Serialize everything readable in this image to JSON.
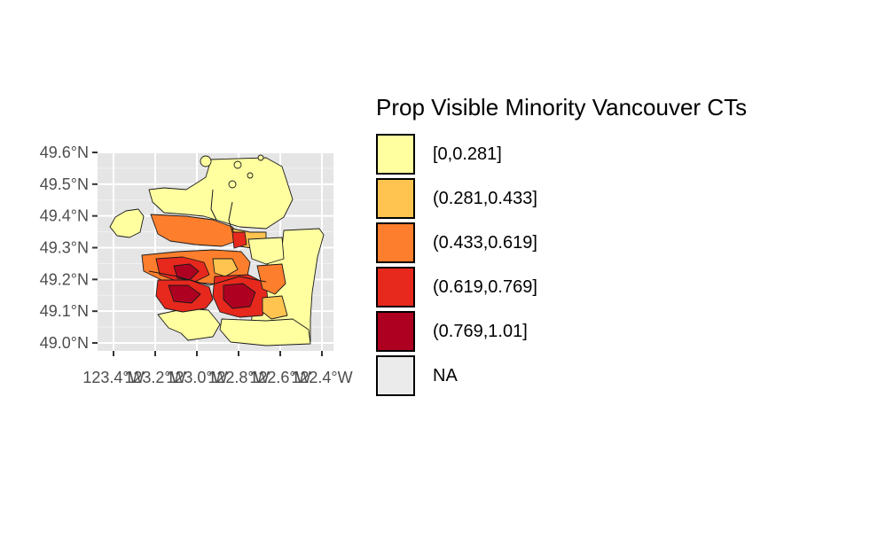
{
  "chart_data": {
    "type": "choropleth",
    "title": "",
    "xlabel": "",
    "ylabel": "",
    "y_ticks": [
      "49.6°N",
      "49.5°N",
      "49.4°N",
      "49.3°N",
      "49.2°N",
      "49.1°N",
      "49.0°N"
    ],
    "x_ticks": [
      "123.4°W",
      "123.2°W",
      "123.0°W",
      "122.8°W",
      "122.6°W",
      "122.4°W"
    ],
    "ylim": [
      49.0,
      49.6
    ],
    "xlim": [
      -123.4,
      -122.4
    ],
    "grid": true,
    "panel_background": "#e5e5e5",
    "legend": {
      "title": "Prop Visible Minority Vancouver CTs",
      "position": "right",
      "entries": [
        {
          "label": "[0,0.281]",
          "color": "#ffffa0"
        },
        {
          "label": "(0.281,0.433]",
          "color": "#fec44f"
        },
        {
          "label": "(0.433,0.619]",
          "color": "#fd7e2c"
        },
        {
          "label": "(0.619,0.769]",
          "color": "#e6281d"
        },
        {
          "label": "(0.769,1.01]",
          "color": "#ae0020"
        },
        {
          "label": "NA",
          "color": "#ebebeb"
        }
      ]
    }
  }
}
